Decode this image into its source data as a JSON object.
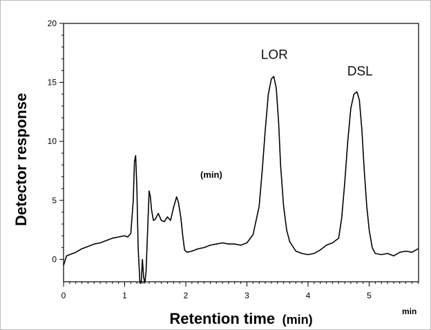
{
  "chart_data": {
    "type": "line",
    "xlabel": "Retention time",
    "xlabel_unit": "(min)",
    "ylabel": "Detector response",
    "x_unit_label": "min",
    "inner_label": "(min)",
    "xlim": [
      0,
      5.8
    ],
    "ylim": [
      -2,
      20
    ],
    "xticks": [
      "0",
      "1",
      "2",
      "3",
      "4",
      "5"
    ],
    "yticks": [
      "0",
      "5",
      "10",
      "15",
      "20"
    ],
    "series": [
      {
        "color": "#000000",
        "x": [
          0,
          0.05,
          0.1,
          0.2,
          0.3,
          0.4,
          0.5,
          0.6,
          0.7,
          0.8,
          0.9,
          1.0,
          1.05,
          1.1,
          1.14,
          1.16,
          1.18,
          1.2,
          1.22,
          1.25,
          1.27,
          1.29,
          1.31,
          1.33,
          1.35,
          1.38,
          1.4,
          1.42,
          1.44,
          1.47,
          1.5,
          1.55,
          1.6,
          1.65,
          1.7,
          1.75,
          1.8,
          1.85,
          1.88,
          1.92,
          1.95,
          1.98,
          2.02,
          2.1,
          2.2,
          2.3,
          2.4,
          2.5,
          2.6,
          2.7,
          2.8,
          2.9,
          3.0,
          3.1,
          3.2,
          3.25,
          3.3,
          3.35,
          3.4,
          3.44,
          3.48,
          3.52,
          3.55,
          3.6,
          3.65,
          3.7,
          3.8,
          3.9,
          4.0,
          4.1,
          4.2,
          4.3,
          4.4,
          4.5,
          4.55,
          4.6,
          4.65,
          4.7,
          4.75,
          4.8,
          4.84,
          4.88,
          4.92,
          4.96,
          5.0,
          5.05,
          5.1,
          5.2,
          5.3,
          5.4,
          5.5,
          5.6,
          5.7,
          5.8
        ],
        "y": [
          -0.5,
          0.3,
          0.4,
          0.6,
          0.9,
          1.1,
          1.3,
          1.4,
          1.6,
          1.8,
          1.9,
          2.0,
          1.9,
          2.2,
          5.0,
          8.3,
          8.8,
          6.0,
          1.0,
          -2.0,
          -2.0,
          0.0,
          -1.5,
          -2.0,
          -1.0,
          3.0,
          5.8,
          5.3,
          4.2,
          3.3,
          3.4,
          3.9,
          3.3,
          3.2,
          3.6,
          3.3,
          4.4,
          5.3,
          4.8,
          3.5,
          2.0,
          0.8,
          0.6,
          0.7,
          0.9,
          1.0,
          1.2,
          1.3,
          1.4,
          1.3,
          1.3,
          1.2,
          1.4,
          2.1,
          4.5,
          7.5,
          11.0,
          14.0,
          15.3,
          15.5,
          14.5,
          11.5,
          8.0,
          4.5,
          2.5,
          1.5,
          0.7,
          0.5,
          0.4,
          0.5,
          0.8,
          1.2,
          1.4,
          1.8,
          3.5,
          6.5,
          10.0,
          12.8,
          14.0,
          14.2,
          13.5,
          11.0,
          7.5,
          4.5,
          2.5,
          1.0,
          0.5,
          0.4,
          0.5,
          0.3,
          0.6,
          0.7,
          0.6,
          0.9
        ]
      }
    ],
    "annotations": [
      {
        "text": "LOR",
        "x": 3.45,
        "y": 17.0
      },
      {
        "text": "DSL",
        "x": 4.85,
        "y": 15.6
      }
    ]
  }
}
